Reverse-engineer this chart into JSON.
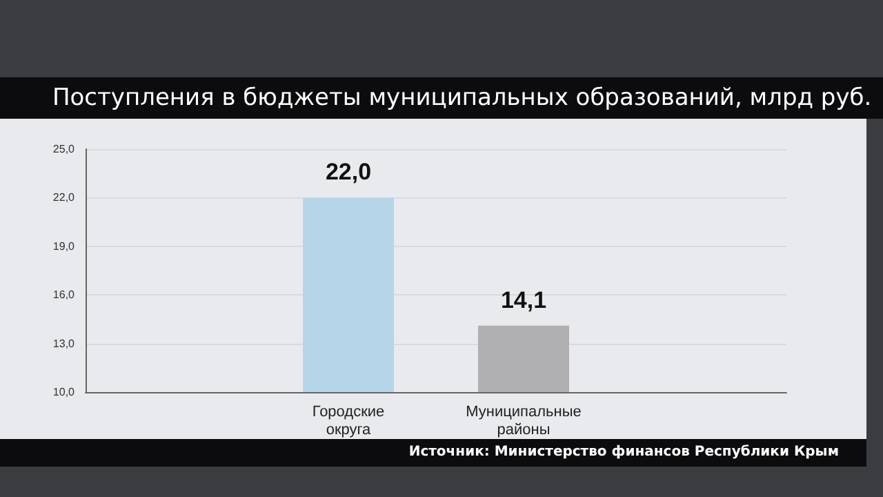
{
  "chart_data": {
    "type": "bar",
    "title": "Поступления в бюджеты муниципальных образований, млрд руб.",
    "categories": [
      null,
      "Городские округа",
      "Муниципальные районы",
      null
    ],
    "values": [
      null,
      22.0,
      14.1,
      null
    ],
    "value_labels": [
      null,
      "22,0",
      "14,1",
      null
    ],
    "colors": [
      "#b5d6e8",
      "#b5d6e8",
      "#b0b0b2",
      "#b0b0b2"
    ],
    "ylim": [
      10,
      25
    ],
    "yticks": [
      {
        "value": 10,
        "label": "10,0"
      },
      {
        "value": 13,
        "label": "13,0"
      },
      {
        "value": 16,
        "label": "16,0"
      },
      {
        "value": 19,
        "label": "19,0"
      },
      {
        "value": 22,
        "label": "22,0"
      },
      {
        "value": 25,
        "label": "25,0"
      }
    ],
    "grid": "y",
    "annotations": [
      "Источник: Министерство финансов Республики Крым"
    ]
  }
}
